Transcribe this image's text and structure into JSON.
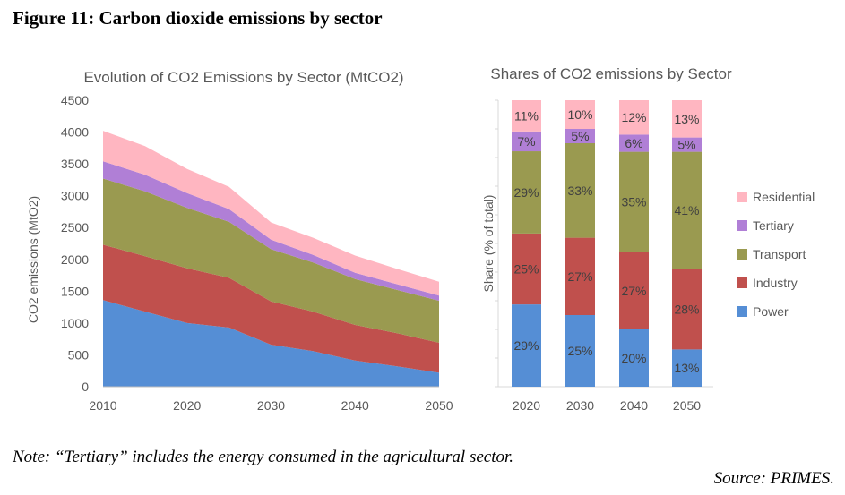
{
  "figure": {
    "title": "Figure 11: Carbon dioxide emissions by sector",
    "note": "Note: “Tertiary” includes the energy consumed in the agricultural sector.",
    "source": "Source: PRIMES."
  },
  "chart_data": [
    {
      "type": "area",
      "stacked": true,
      "title": "Evolution of CO2 Emissions by Sector (MtCO2)",
      "xlabel": "",
      "ylabel": "CO2 emissions (MtO2)",
      "x": [
        2010,
        2015,
        2020,
        2025,
        2030,
        2035,
        2040,
        2045,
        2050
      ],
      "xticks": [
        "2010",
        "2020",
        "2030",
        "2040",
        "2050"
      ],
      "xlim": [
        2010,
        2050
      ],
      "ylim": [
        0,
        4500
      ],
      "yticks": [
        "0",
        "500",
        "1000",
        "1500",
        "2000",
        "2500",
        "3000",
        "3500",
        "4000",
        "4500"
      ],
      "grid": false,
      "series": [
        {
          "name": "Power",
          "color": "#558ed5",
          "values": [
            1360,
            1180,
            1000,
            930,
            660,
            560,
            410,
            320,
            220
          ]
        },
        {
          "name": "Industry",
          "color": "#c0504d",
          "values": [
            870,
            870,
            860,
            780,
            680,
            620,
            560,
            520,
            470
          ]
        },
        {
          "name": "Transport",
          "color": "#9a9a50",
          "values": [
            1040,
            1020,
            950,
            880,
            820,
            770,
            720,
            680,
            660
          ]
        },
        {
          "name": "Tertiary",
          "color": "#b07fd6",
          "values": [
            270,
            260,
            230,
            200,
            150,
            120,
            100,
            90,
            80
          ]
        },
        {
          "name": "Residential",
          "color": "#ffb6c1",
          "values": [
            480,
            450,
            380,
            350,
            270,
            270,
            270,
            240,
            220
          ]
        }
      ]
    },
    {
      "type": "bar",
      "stacked": true,
      "title": "Shares of CO2 emissions by Sector",
      "xlabel": "",
      "ylabel": "Share (% of total)",
      "categories": [
        "2020",
        "2030",
        "2040",
        "2050"
      ],
      "legend_position": "right",
      "grid": false,
      "series": [
        {
          "name": "Power",
          "color": "#558ed5",
          "values": [
            29,
            25,
            20,
            13
          ],
          "labels": [
            "29%",
            "25%",
            "20%",
            "13%"
          ]
        },
        {
          "name": "Industry",
          "color": "#c0504d",
          "values": [
            25,
            27,
            27,
            28
          ],
          "labels": [
            "25%",
            "27%",
            "27%",
            "28%"
          ]
        },
        {
          "name": "Transport",
          "color": "#9a9a50",
          "values": [
            29,
            33,
            35,
            41
          ],
          "labels": [
            "29%",
            "33%",
            "35%",
            "41%"
          ]
        },
        {
          "name": "Tertiary",
          "color": "#b07fd6",
          "values": [
            7,
            5,
            6,
            5
          ],
          "labels": [
            "7%",
            "5%",
            "6%",
            "5%"
          ]
        },
        {
          "name": "Residential",
          "color": "#ffb6c1",
          "values": [
            11,
            10,
            12,
            13
          ],
          "labels": [
            "11%",
            "10%",
            "12%",
            "13%"
          ]
        }
      ],
      "legend": [
        "Residential",
        "Tertiary",
        "Transport",
        "Industry",
        "Power"
      ]
    }
  ]
}
